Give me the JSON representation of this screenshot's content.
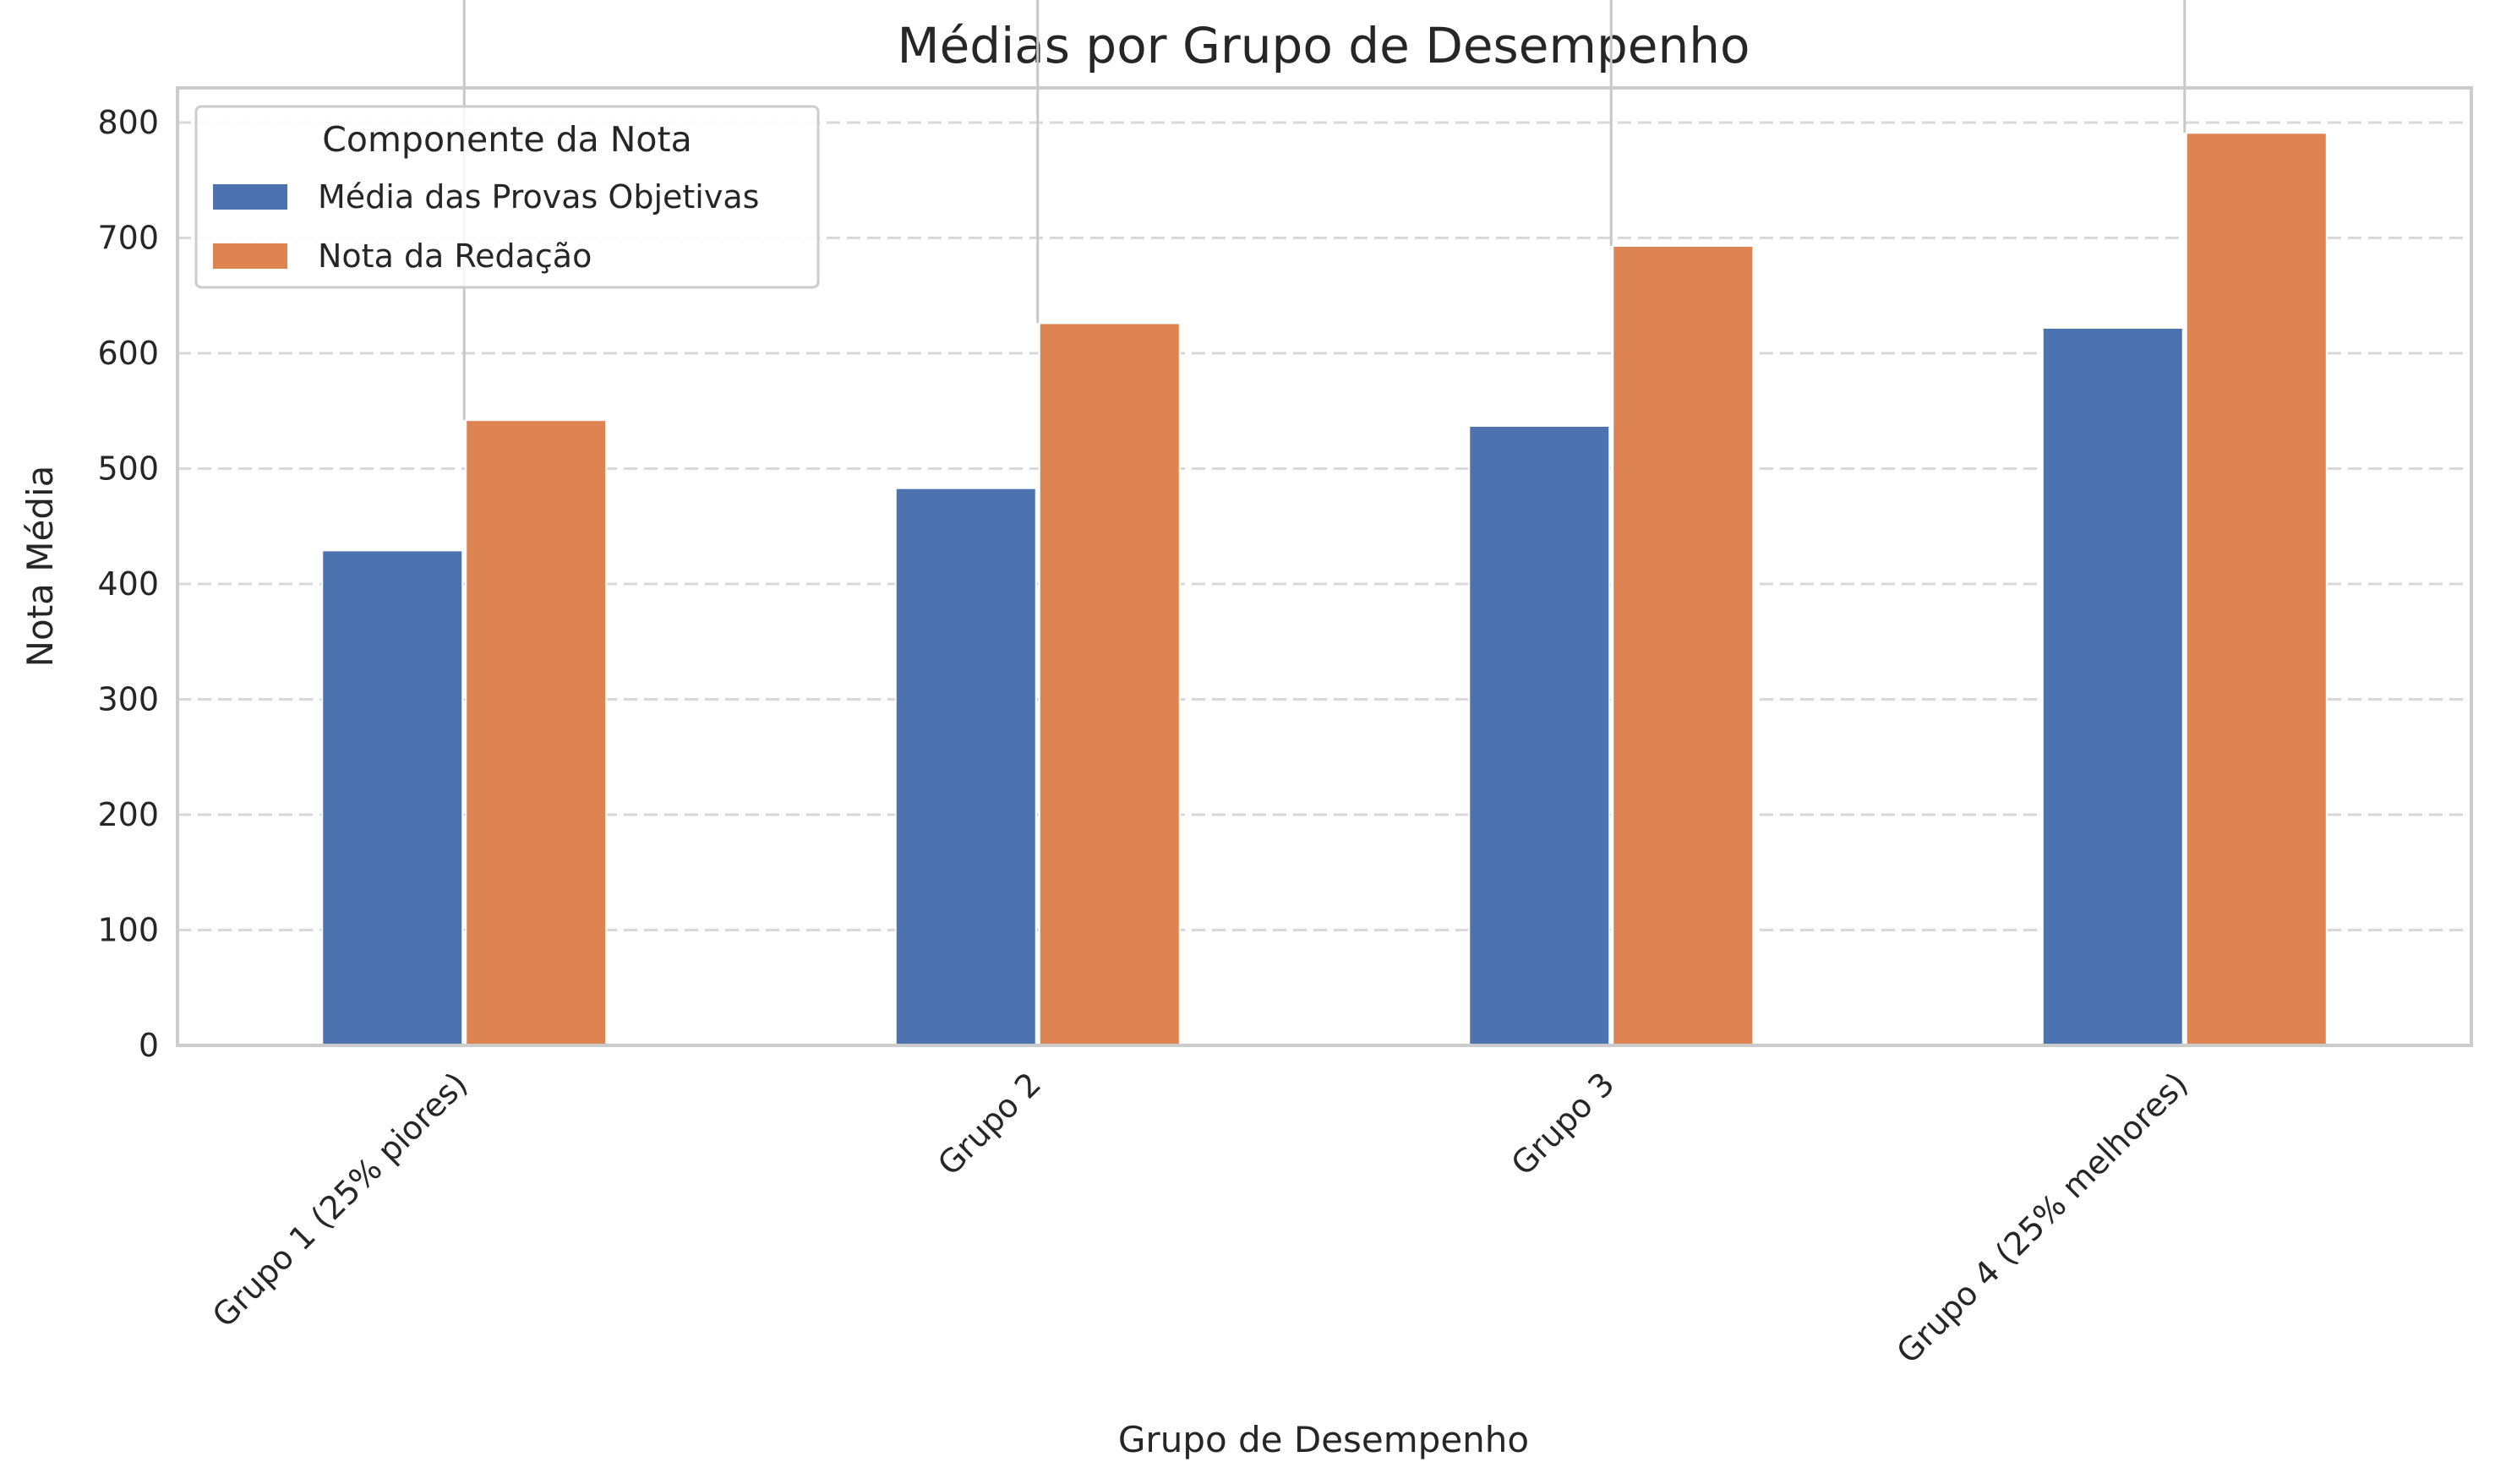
{
  "chart_data": {
    "type": "bar",
    "title": "Médias por Grupo de Desempenho",
    "xlabel": "Grupo de Desempenho",
    "ylabel": "Nota Média",
    "categories": [
      "Grupo 1 (25% piores)",
      "Grupo 2",
      "Grupo 3",
      "Grupo 4 (25% melhores)"
    ],
    "series": [
      {
        "name": "Média das Provas Objetivas",
        "values": [
          429,
          483,
          537,
          622
        ],
        "color": "#4c72b0"
      },
      {
        "name": "Nota da Redação",
        "values": [
          542,
          626,
          693,
          791
        ],
        "color": "#dd8452"
      }
    ],
    "ylim": [
      0,
      830
    ],
    "yticks": [
      0,
      100,
      200,
      300,
      400,
      500,
      600,
      700,
      800
    ],
    "grid": "horizontal dashed",
    "legend": {
      "title": "Componente da Nota",
      "placement": "top-left"
    },
    "error_bar_tops": [
      915,
      915,
      915,
      915
    ]
  }
}
